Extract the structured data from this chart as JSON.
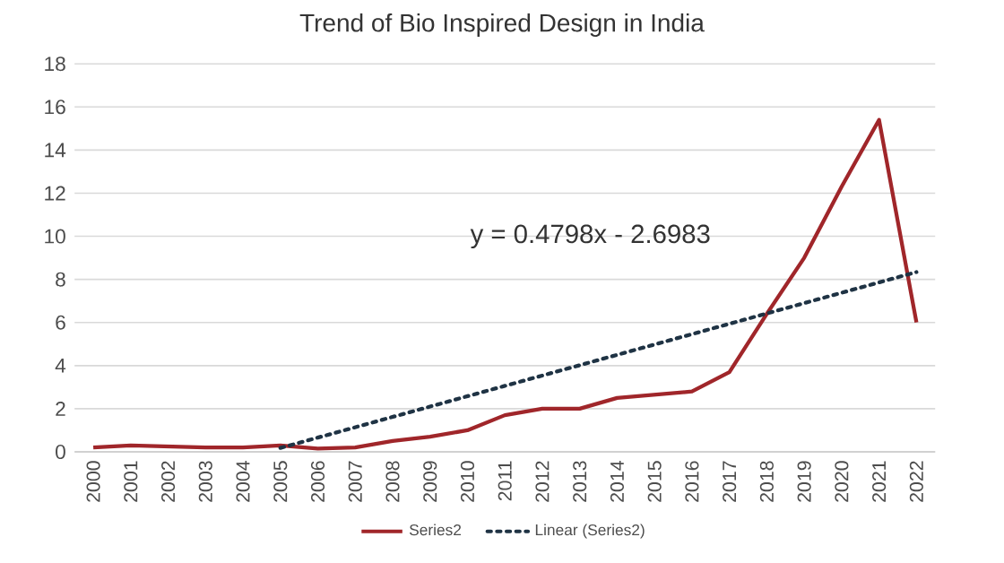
{
  "chart_data": {
    "type": "line",
    "title": "Trend of Bio Inspired Design in India",
    "categories": [
      "2000",
      "2001",
      "2002",
      "2003",
      "2004",
      "2005",
      "2006",
      "2007",
      "2008",
      "2009",
      "2010",
      "2011",
      "2012",
      "2013",
      "2014",
      "2015",
      "2016",
      "2017",
      "2018",
      "2019",
      "2020",
      "2021",
      "2022"
    ],
    "series": [
      {
        "name": "Series2",
        "color": "#a0262a",
        "line_style": "solid",
        "values": [
          0.2,
          0.3,
          0.25,
          0.2,
          0.2,
          0.3,
          0.15,
          0.2,
          0.5,
          0.7,
          1.0,
          1.7,
          2.0,
          2.0,
          2.5,
          2.65,
          2.8,
          3.7,
          6.4,
          9.0,
          12.3,
          15.4,
          6.0
        ]
      },
      {
        "name": "Linear (Series2)",
        "color": "#1f3344",
        "line_style": "dotted",
        "values": [
          null,
          null,
          null,
          null,
          null,
          0.18,
          0.66,
          1.14,
          1.62,
          2.1,
          2.58,
          3.06,
          3.54,
          4.02,
          4.5,
          4.98,
          5.46,
          5.94,
          6.42,
          6.9,
          7.38,
          7.86,
          8.34
        ]
      }
    ],
    "annotations": [
      "y = 0.4798x - 2.6983"
    ],
    "ylim": [
      0,
      18
    ],
    "yticks": [
      0,
      2,
      4,
      6,
      8,
      10,
      12,
      14,
      16,
      18
    ],
    "grid": "y",
    "legend": "bottom",
    "marker": "none"
  }
}
